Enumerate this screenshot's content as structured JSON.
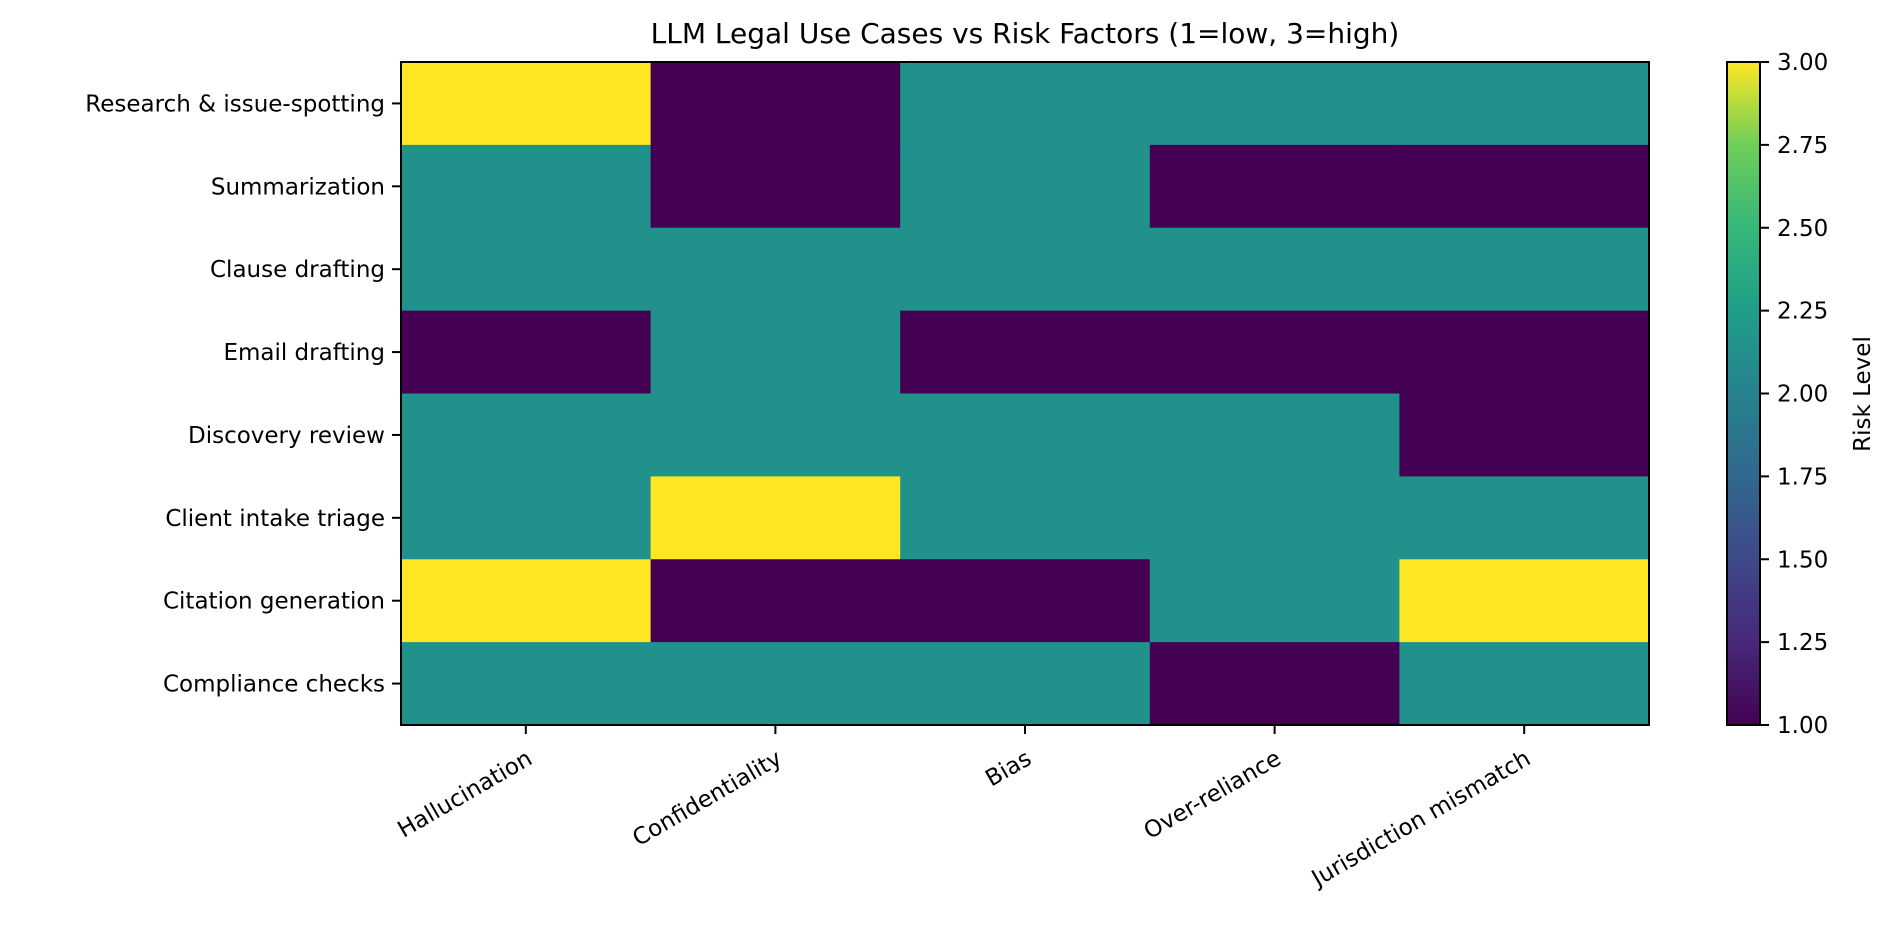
{
  "chart_data": {
    "type": "heatmap",
    "title": "LLM Legal Use Cases vs Risk Factors (1=low, 3=high)",
    "xlabel": "",
    "ylabel": "",
    "x_categories": [
      "Hallucination",
      "Confidentiality",
      "Bias",
      "Over-reliance",
      "Jurisdiction mismatch"
    ],
    "y_categories": [
      "Research & issue-spotting",
      "Summarization",
      "Clause drafting",
      "Email drafting",
      "Discovery review",
      "Client intake triage",
      "Citation generation",
      "Compliance checks"
    ],
    "values": [
      [
        3,
        1,
        2,
        2,
        2
      ],
      [
        2,
        1,
        2,
        1,
        1
      ],
      [
        2,
        2,
        2,
        2,
        2
      ],
      [
        1,
        2,
        1,
        1,
        1
      ],
      [
        2,
        2,
        2,
        2,
        1
      ],
      [
        2,
        3,
        2,
        2,
        2
      ],
      [
        3,
        1,
        1,
        2,
        3
      ],
      [
        2,
        2,
        2,
        1,
        2
      ]
    ],
    "colormap": "viridis",
    "colorbar": {
      "label": "Risk Level",
      "range": [
        1.0,
        3.0
      ],
      "ticks": [
        "1.00",
        "1.25",
        "1.50",
        "1.75",
        "2.00",
        "2.25",
        "2.50",
        "2.75",
        "3.00"
      ],
      "tick_values": [
        1.0,
        1.25,
        1.5,
        1.75,
        2.0,
        2.25,
        2.5,
        2.75,
        3.0
      ]
    },
    "colors": {
      "low": "#440154",
      "mid": "#21918c",
      "high": "#fde725"
    },
    "grid": false
  }
}
